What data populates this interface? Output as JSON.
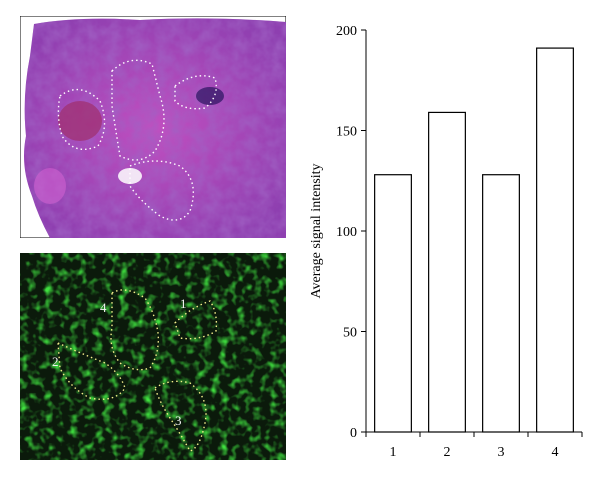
{
  "images": {
    "histology": {
      "kind": "H&E-stained tissue section"
    },
    "fluorescence": {
      "kind": "green fluorescence section",
      "regions": [
        {
          "label": "1"
        },
        {
          "label": "2"
        },
        {
          "label": "3"
        },
        {
          "label": "4"
        }
      ]
    }
  },
  "colors": {
    "roi_outline_histology": "#ffffff",
    "roi_outline_fluorescence": "#f5f08c",
    "bar_fill": "#ffffff",
    "bar_stroke": "#000000"
  },
  "chart_data": {
    "type": "bar",
    "categories": [
      "1",
      "2",
      "3",
      "4"
    ],
    "values": [
      128,
      159,
      128,
      191
    ],
    "title": "",
    "xlabel": "",
    "ylabel": "Average signal intensity",
    "ylim": [
      0,
      200
    ],
    "yticks": [
      "0",
      "50",
      "100",
      "150",
      "200"
    ],
    "grid": false
  }
}
